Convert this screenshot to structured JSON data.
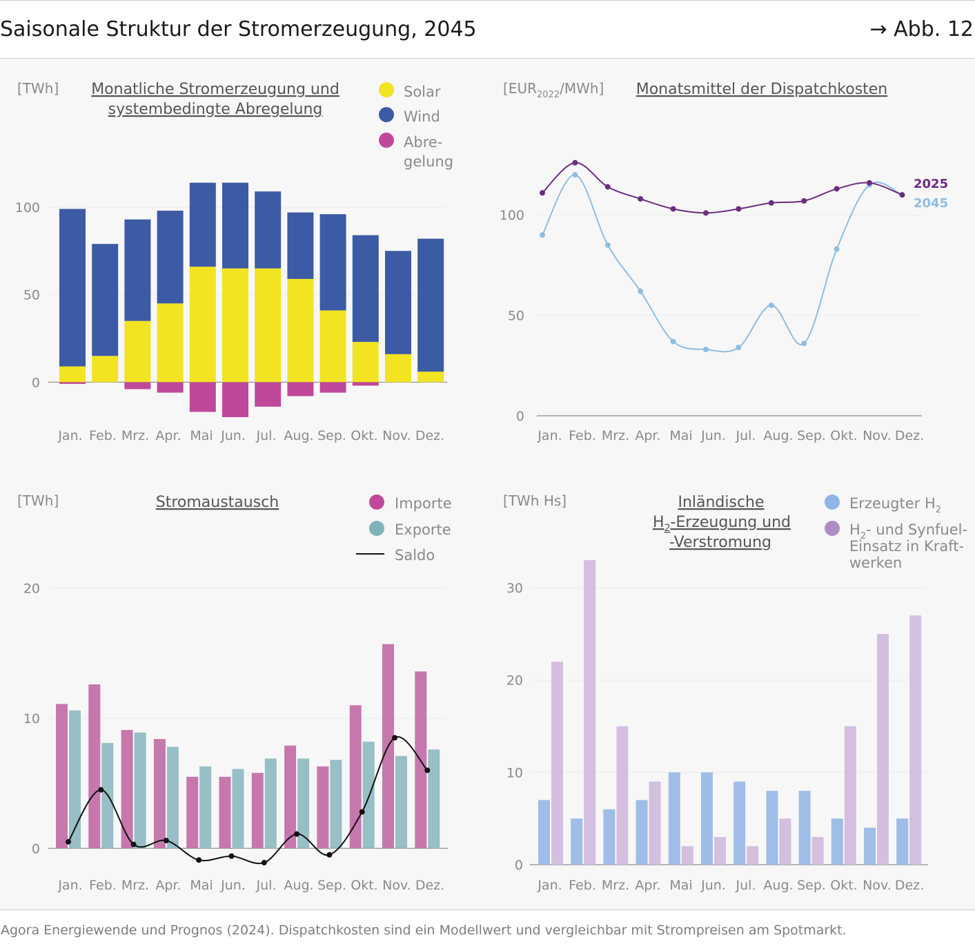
{
  "header": {
    "title": "Saisonale Struktur der Stromerzeugung, 2045",
    "figure_ref": "→ Abb. 12"
  },
  "footer": {
    "source": "Agora Energiewende und Prognos (2024). Dispatchkosten sind ein Modellwert und vergleichbar mit Strompreisen am Spotmarkt."
  },
  "colors": {
    "solar": "#f2e421",
    "wind": "#3d5aa5",
    "curtail": "#c0489a",
    "line2025": "#6b2d7e",
    "line2045": "#8fbde2",
    "imports": "#c678ad",
    "exports": "#98bec6",
    "saldo": "#111111",
    "h2prod": "#9fbde6",
    "h2use": "#d4bfe0"
  },
  "chart_data": [
    {
      "id": "generation",
      "type": "bar",
      "stacked": true,
      "title_lines": [
        "Monatliche Stromerzeugung und ",
        "systembedingte Abregelung"
      ],
      "unit": "[TWh]",
      "categories": [
        "Jan.",
        "Feb.",
        "Mrz.",
        "Apr.",
        "Mai",
        "Jun.",
        "Jul.",
        "Aug.",
        "Sep.",
        "Okt.",
        "Nov.",
        "Dez."
      ],
      "ylim": [
        -20,
        115
      ],
      "yticks": [
        0,
        50,
        100
      ],
      "series": [
        {
          "name": "Solar",
          "values": [
            9,
            15,
            35,
            45,
            66,
            65,
            65,
            59,
            41,
            23,
            16,
            6
          ]
        },
        {
          "name": "Wind",
          "values": [
            90,
            64,
            58,
            53,
            48,
            49,
            44,
            38,
            55,
            61,
            59,
            76
          ]
        },
        {
          "name": "Abregelung",
          "values": [
            -1,
            0,
            -4,
            -6,
            -17,
            -20,
            -14,
            -8,
            -6,
            -2,
            0,
            0
          ]
        }
      ],
      "legend": [
        "Solar",
        "Wind",
        "Abre-",
        "gelung"
      ]
    },
    {
      "id": "dispatch",
      "type": "line",
      "title_lines": [
        "Monatsmittel der Dispatchkosten"
      ],
      "unit_main": "[EUR",
      "unit_sub": "2022",
      "unit_tail": "/MWh]",
      "categories": [
        "Jan.",
        "Feb.",
        "Mrz.",
        "Apr.",
        "Mai",
        "Jun.",
        "Jul.",
        "Aug.",
        "Sep.",
        "Okt.",
        "Nov.",
        "Dez."
      ],
      "ylim": [
        0,
        130
      ],
      "yticks": [
        0,
        50,
        100
      ],
      "series": [
        {
          "name": "2025",
          "values": [
            111,
            126,
            114,
            108,
            103,
            101,
            103,
            106,
            107,
            113,
            116,
            110
          ]
        },
        {
          "name": "2045",
          "values": [
            90,
            120,
            85,
            62,
            37,
            33,
            34,
            55,
            36,
            83,
            115,
            110
          ]
        }
      ]
    },
    {
      "id": "exchange",
      "type": "bar",
      "title_lines": [
        "Stromaustausch"
      ],
      "unit": "[TWh]",
      "categories": [
        "Jan.",
        "Feb.",
        "Mrz.",
        "Apr.",
        "Mai",
        "Jun.",
        "Jul.",
        "Aug.",
        "Sep.",
        "Okt.",
        "Nov.",
        "Dez."
      ],
      "ylim": [
        -2,
        22
      ],
      "yticks": [
        0,
        10,
        20
      ],
      "series": [
        {
          "name": "Importe",
          "values": [
            11.1,
            12.6,
            9.1,
            8.4,
            5.5,
            5.5,
            5.8,
            7.9,
            6.3,
            11.0,
            15.7,
            13.6
          ]
        },
        {
          "name": "Exporte",
          "values": [
            10.6,
            8.1,
            8.9,
            7.8,
            6.3,
            6.1,
            6.9,
            6.9,
            6.8,
            8.2,
            7.1,
            7.6
          ]
        },
        {
          "name": "Saldo",
          "values": [
            0.5,
            4.5,
            0.3,
            0.6,
            -0.9,
            -0.6,
            -1.1,
            1.1,
            -0.5,
            2.8,
            8.5,
            6.0
          ]
        }
      ],
      "legend": [
        "Importe",
        "Exporte",
        "Saldo"
      ]
    },
    {
      "id": "hydrogen",
      "type": "bar",
      "title_lines": [
        "Inländische ",
        "-Erzeugung und ",
        "-Verstromung"
      ],
      "title_h2_prefix": "H",
      "title_h2_sub": "2",
      "unit": "[TWh Hs]",
      "categories": [
        "Jan.",
        "Feb.",
        "Mrz.",
        "Apr.",
        "Mai",
        "Jun.",
        "Jul.",
        "Aug.",
        "Sep.",
        "Okt.",
        "Nov.",
        "Dez."
      ],
      "ylim": [
        0,
        33
      ],
      "yticks": [
        0,
        10,
        20,
        30
      ],
      "series": [
        {
          "name": "Erzeugter H2",
          "values": [
            7,
            5,
            6,
            7,
            10,
            10,
            9,
            8,
            8,
            5,
            4,
            5
          ]
        },
        {
          "name": "H2- und Synfuel-Einsatz in Kraftwerken",
          "values": [
            22,
            33,
            15,
            9,
            2,
            3,
            2,
            5,
            3,
            15,
            25,
            27
          ]
        }
      ],
      "legend_prod_main": "Erzeugter H",
      "legend_prod_sub": "2",
      "legend_use_h": "H",
      "legend_use_sub": "2",
      "legend_use_line1_tail": "- und Synfuel-",
      "legend_use_line2": "Einsatz in Kraft-",
      "legend_use_line3": "werken"
    }
  ]
}
